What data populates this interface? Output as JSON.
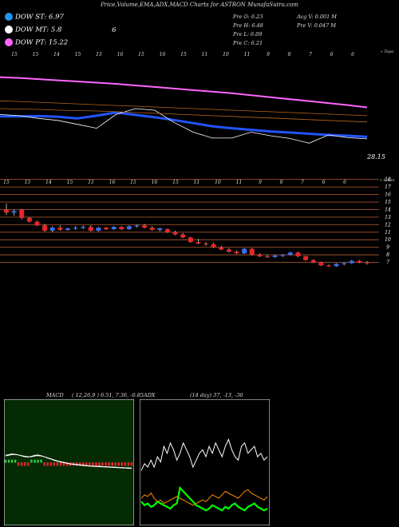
{
  "header": {
    "title": "Price,Volume,EMA,ADX,MACD Charts for ASTRON  MunafaSutra.com"
  },
  "legend": [
    {
      "label": "DOW ST: 6.97",
      "extra": "",
      "color": "#2196f3"
    },
    {
      "label": "DOW MT: 5.8",
      "extra": "6",
      "color": "#ffffff"
    },
    {
      "label": "DOW PT: 15.22",
      "extra": "",
      "color": "#ff66ff"
    }
  ],
  "ohlc": {
    "open": "Pre  O: 6.23",
    "high": "Pre  H: 6.48",
    "low": "Pre  L: 6.09",
    "close": "Pre  C: 6.21",
    "avg_vol": "Avg V: 0.001 M",
    "pre_vol": "Pre  V: 0.047 M"
  },
  "chart_data": [
    {
      "type": "line",
      "name": "ema-panel",
      "top_tick_labels": [
        "15",
        "15",
        "14",
        "15",
        "15",
        "16",
        "15",
        "16",
        "15",
        "11",
        "10",
        "11",
        "9",
        "8",
        "7",
        "6",
        "6"
      ],
      "corner_label": "« Topo",
      "last_value_label": "28.15",
      "series": [
        {
          "name": "",
          "color": "#ff66ff",
          "values": [
            43,
            42.8,
            42.5,
            42.2,
            41.9,
            41.6,
            41.3,
            40.9,
            40.5,
            40.1,
            39.7,
            39.3,
            38.9,
            38.4,
            37.9,
            37.4,
            36.9,
            36.4,
            35.9,
            35.3
          ]
        },
        {
          "name": "",
          "color": "#2255ff",
          "values": [
            33,
            33,
            33.1,
            32.9,
            32.5,
            33.2,
            34,
            33.4,
            32.8,
            32.1,
            31.3,
            30.5,
            30,
            29.6,
            29.2,
            28.9,
            28.6,
            28.3,
            28.1,
            27.8
          ]
        },
        {
          "name": "",
          "color": "#ffffff",
          "values": [
            33.5,
            33.2,
            32.5,
            32,
            31,
            30,
            33.5,
            35,
            34.6,
            31.5,
            29,
            27.5,
            27.5,
            29,
            28.1,
            27.4,
            26.2,
            28.3,
            27.6,
            27.3
          ]
        },
        {
          "name": "",
          "color": "#b5651d",
          "values": [
            37,
            36.8,
            36.6,
            36.4,
            36.2,
            36,
            35.8,
            35.6,
            35.4,
            35.2,
            35,
            34.8,
            34.6,
            34.4,
            34.2,
            34,
            33.8,
            33.6,
            33.4,
            33.2
          ]
        },
        {
          "name": "",
          "color": "#b5651d",
          "values": [
            35,
            34.9,
            34.8,
            34.6,
            34.5,
            34.4,
            34.2,
            34,
            33.8,
            33.6,
            33.4,
            33.2,
            33,
            32.8,
            32.6,
            32.4,
            32.2,
            32,
            31.8,
            31.6
          ]
        }
      ],
      "ylim": [
        22,
        48
      ]
    },
    {
      "type": "candlestick",
      "name": "price-panel",
      "top_tick_labels": [
        "15",
        "15",
        "14",
        "15",
        "15",
        "16",
        "15",
        "16",
        "15",
        "11",
        "10",
        "11",
        "9",
        "8",
        "7",
        "6",
        "6"
      ],
      "corner_label": "« Louis",
      "y_ticks": [
        18,
        17,
        16,
        15,
        14,
        13,
        12,
        11,
        10,
        9,
        8,
        7
      ],
      "ylim": [
        6,
        18.5
      ],
      "candles": [
        {
          "o": 14.0,
          "h": 14.8,
          "l": 13.3,
          "c": 13.6
        },
        {
          "o": 13.6,
          "h": 14.0,
          "l": 13.2,
          "c": 13.8
        },
        {
          "o": 14.0,
          "h": 14.1,
          "l": 12.7,
          "c": 12.9
        },
        {
          "o": 12.9,
          "h": 13.0,
          "l": 12.3,
          "c": 12.4
        },
        {
          "o": 12.4,
          "h": 12.5,
          "l": 11.8,
          "c": 11.9
        },
        {
          "o": 11.9,
          "h": 12.1,
          "l": 11.1,
          "c": 11.2
        },
        {
          "o": 11.2,
          "h": 11.8,
          "l": 11.0,
          "c": 11.6
        },
        {
          "o": 11.6,
          "h": 11.9,
          "l": 11.2,
          "c": 11.3
        },
        {
          "o": 11.3,
          "h": 11.6,
          "l": 11.2,
          "c": 11.5
        },
        {
          "o": 11.5,
          "h": 11.8,
          "l": 11.3,
          "c": 11.6
        },
        {
          "o": 11.6,
          "h": 11.9,
          "l": 11.4,
          "c": 11.7
        },
        {
          "o": 11.7,
          "h": 11.9,
          "l": 11.1,
          "c": 11.2
        },
        {
          "o": 11.2,
          "h": 11.7,
          "l": 11.1,
          "c": 11.6
        },
        {
          "o": 11.6,
          "h": 11.7,
          "l": 11.3,
          "c": 11.4
        },
        {
          "o": 11.4,
          "h": 11.8,
          "l": 11.3,
          "c": 11.7
        },
        {
          "o": 11.7,
          "h": 11.8,
          "l": 11.3,
          "c": 11.4
        },
        {
          "o": 11.4,
          "h": 11.9,
          "l": 11.3,
          "c": 11.8
        },
        {
          "o": 11.8,
          "h": 12.0,
          "l": 11.6,
          "c": 11.9
        },
        {
          "o": 11.9,
          "h": 12.1,
          "l": 11.5,
          "c": 11.6
        },
        {
          "o": 11.6,
          "h": 11.8,
          "l": 11.2,
          "c": 11.3
        },
        {
          "o": 11.3,
          "h": 11.6,
          "l": 11.1,
          "c": 11.5
        },
        {
          "o": 11.4,
          "h": 11.5,
          "l": 10.9,
          "c": 11.0
        },
        {
          "o": 11.0,
          "h": 11.2,
          "l": 10.6,
          "c": 10.7
        },
        {
          "o": 10.7,
          "h": 10.9,
          "l": 10.2,
          "c": 10.3
        },
        {
          "o": 10.3,
          "h": 10.4,
          "l": 9.6,
          "c": 9.7
        },
        {
          "o": 9.7,
          "h": 10.1,
          "l": 9.4,
          "c": 9.5
        },
        {
          "o": 9.5,
          "h": 9.7,
          "l": 9.2,
          "c": 9.4
        },
        {
          "o": 9.4,
          "h": 9.6,
          "l": 8.9,
          "c": 9.0
        },
        {
          "o": 9.0,
          "h": 9.2,
          "l": 8.6,
          "c": 8.7
        },
        {
          "o": 8.7,
          "h": 8.9,
          "l": 8.3,
          "c": 8.4
        },
        {
          "o": 8.4,
          "h": 8.6,
          "l": 8.1,
          "c": 8.2
        },
        {
          "o": 8.2,
          "h": 8.9,
          "l": 8.1,
          "c": 8.8
        },
        {
          "o": 8.8,
          "h": 8.9,
          "l": 7.9,
          "c": 8.0
        },
        {
          "o": 8.0,
          "h": 8.2,
          "l": 7.7,
          "c": 7.8
        },
        {
          "o": 7.8,
          "h": 8.0,
          "l": 7.6,
          "c": 7.7
        },
        {
          "o": 7.7,
          "h": 8.0,
          "l": 7.6,
          "c": 7.9
        },
        {
          "o": 7.9,
          "h": 8.1,
          "l": 7.7,
          "c": 8.0
        },
        {
          "o": 8.0,
          "h": 8.4,
          "l": 7.9,
          "c": 8.3
        },
        {
          "o": 8.3,
          "h": 8.4,
          "l": 7.7,
          "c": 7.8
        },
        {
          "o": 7.8,
          "h": 7.9,
          "l": 7.2,
          "c": 7.3
        },
        {
          "o": 7.3,
          "h": 7.4,
          "l": 6.9,
          "c": 7.0
        },
        {
          "o": 7.0,
          "h": 7.1,
          "l": 6.5,
          "c": 6.6
        },
        {
          "o": 6.6,
          "h": 6.7,
          "l": 6.4,
          "c": 6.5
        },
        {
          "o": 6.5,
          "h": 6.9,
          "l": 6.4,
          "c": 6.8
        },
        {
          "o": 6.8,
          "h": 7.0,
          "l": 6.6,
          "c": 6.9
        },
        {
          "o": 6.9,
          "h": 7.3,
          "l": 6.8,
          "c": 7.2
        },
        {
          "o": 7.2,
          "h": 7.3,
          "l": 6.9,
          "c": 7.0
        },
        {
          "o": 7.0,
          "h": 7.2,
          "l": 6.7,
          "c": 6.9
        }
      ]
    },
    {
      "type": "line",
      "name": "macd-panel",
      "title": "MACD",
      "params": "( 12,26,9 ) 6.51,  7.36,  -0.85",
      "series": [
        {
          "name": "",
          "color": "#ffffff",
          "values": [
            20,
            22,
            24,
            23,
            21,
            18,
            16,
            15,
            17,
            20,
            21,
            19,
            16,
            12,
            9,
            6,
            3,
            1,
            -1,
            -3,
            -5,
            -6,
            -7,
            -8,
            -9,
            -10,
            -11,
            -11.5,
            -12,
            -12.5,
            -13,
            -13.5,
            -14,
            -14.5,
            -15,
            -15.5,
            -16,
            -16.5,
            -17,
            -17.5
          ]
        },
        {
          "name": "",
          "color": "#ffffff",
          "values": [
            18,
            20,
            22,
            22,
            21,
            19,
            17,
            16,
            16,
            18,
            19,
            18,
            16,
            13,
            10,
            7,
            4,
            2,
            0,
            -2,
            -4,
            -5,
            -6,
            -7,
            -8,
            -9,
            -10,
            -10.5,
            -11,
            -11.5,
            -12,
            -12.5,
            -13,
            -13.5,
            -14,
            -14.5,
            -15,
            -15.5,
            -16,
            -16.5
          ]
        }
      ],
      "histogram": [
        2,
        2,
        2,
        1,
        0,
        -1,
        -1,
        -1,
        1,
        2,
        2,
        1,
        0,
        -1,
        -1,
        -1,
        -1,
        -1,
        -1,
        -1,
        -1,
        -1,
        -1,
        -1,
        -1,
        -1,
        -1,
        -1,
        -1,
        -1,
        -1,
        -1,
        -1,
        -1,
        -1,
        -1,
        -1,
        -1,
        -1,
        -1
      ],
      "ylim": [
        -60,
        60
      ]
    },
    {
      "type": "line",
      "name": "adx-panel",
      "title": "ADX",
      "params": "(14 day) 37,  -13,  -30",
      "series": [
        {
          "name": "",
          "color": "#ffffff",
          "values": [
            28,
            32,
            30,
            34,
            30,
            36,
            33,
            42,
            38,
            44,
            40,
            34,
            38,
            44,
            40,
            36,
            30,
            34,
            38,
            40,
            36,
            42,
            38,
            44,
            40,
            36,
            42,
            46,
            40,
            36,
            34,
            42,
            44,
            38,
            40,
            42,
            36,
            38,
            34,
            36
          ]
        },
        {
          "name": "",
          "color": "#ff8c00",
          "values": [
            12,
            14,
            13,
            15,
            12,
            10,
            11,
            9,
            10,
            11,
            12,
            13,
            12,
            11,
            10,
            9,
            8,
            9,
            10,
            11,
            10,
            12,
            14,
            13,
            12,
            14,
            16,
            15,
            14,
            13,
            12,
            14,
            16,
            17,
            15,
            14,
            13,
            12,
            11,
            13
          ]
        },
        {
          "name": "",
          "color": "#00ff00",
          "values": [
            10,
            8,
            9,
            7,
            8,
            10,
            9,
            8,
            7,
            6,
            8,
            9,
            18,
            16,
            14,
            12,
            10,
            8,
            7,
            6,
            5,
            6,
            8,
            7,
            6,
            5,
            7,
            6,
            8,
            9,
            7,
            6,
            5,
            7,
            8,
            9,
            7,
            6,
            5,
            6
          ]
        }
      ],
      "ylim": [
        0,
        60
      ]
    }
  ]
}
